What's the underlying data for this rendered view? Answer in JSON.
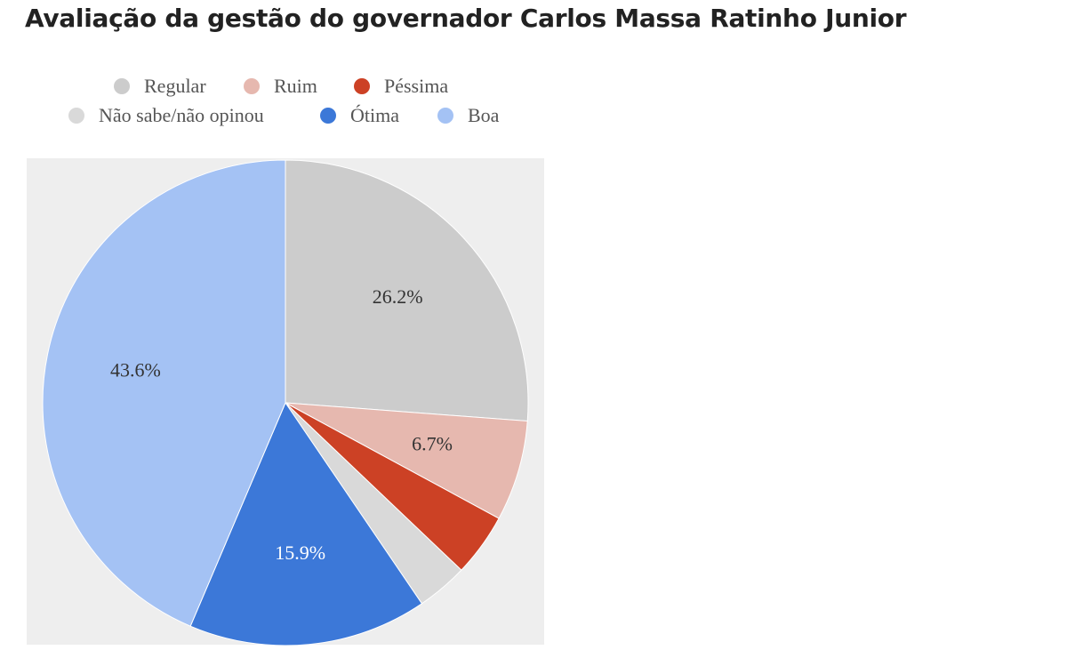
{
  "chart_data": {
    "type": "pie",
    "title": "Avaliação da gestão do governador Carlos Massa Ratinho Junior",
    "legend_position": "top",
    "slices": [
      {
        "name": "Regular",
        "value": 26.2,
        "color": "#cccccc",
        "label": "26.2%",
        "label_color": "#333333"
      },
      {
        "name": "Ruim",
        "value": 6.7,
        "color": "#e6b8af",
        "label": "6.7%",
        "label_color": "#333333"
      },
      {
        "name": "Péssima",
        "value": 4.2,
        "color": "#cc4125",
        "label": "",
        "label_color": "#333333"
      },
      {
        "name": "Não sabe/não opinou",
        "value": 3.4,
        "color": "#d9d9d9",
        "label": "",
        "label_color": "#333333"
      },
      {
        "name": "Ótima",
        "value": 15.9,
        "color": "#3c78d8",
        "label": "15.9%",
        "label_color": "#ffffff"
      },
      {
        "name": "Boa",
        "value": 43.6,
        "color": "#a4c2f4",
        "label": "43.6%",
        "label_color": "#333333"
      }
    ]
  }
}
